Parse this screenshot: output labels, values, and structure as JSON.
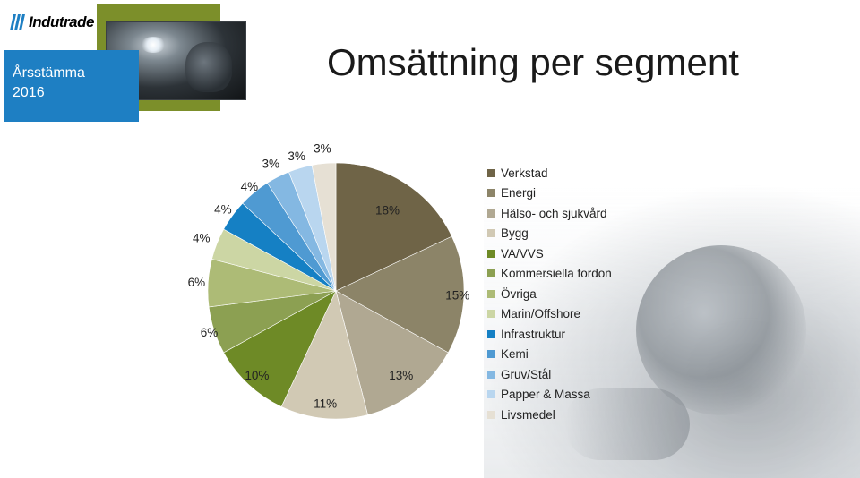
{
  "header": {
    "brand": "Indutrade",
    "meeting_line1": "Årsstämma",
    "meeting_line2": "2016",
    "title": "Omsättning per segment"
  },
  "icons": {
    "logo": "indutrade-logo-icon",
    "thumbnail": "welder-photo"
  },
  "colors": {
    "accent_blue": "#1e7fc3",
    "accent_green": "#7c8f2a"
  },
  "chart_data": {
    "type": "pie",
    "title": "",
    "categories": [
      "Verkstad",
      "Energi",
      "Hälso- och sjukvård",
      "Bygg",
      "VA/VVS",
      "Kommersiella fordon",
      "Övriga",
      "Marin/Offshore",
      "Infrastruktur",
      "Kemi",
      "Gruv/Stål",
      "Papper & Massa",
      "Livsmedel"
    ],
    "values": [
      18,
      15,
      13,
      11,
      10,
      6,
      6,
      4,
      4,
      4,
      3,
      3,
      3
    ],
    "labels": [
      "18%",
      "15%",
      "13%",
      "11%",
      "10%",
      "6%",
      "6%",
      "4%",
      "4%",
      "4%",
      "3%",
      "3%",
      "3%"
    ],
    "colors": [
      "#6f6447",
      "#8c8468",
      "#b0a892",
      "#d1c9b4",
      "#6e8a26",
      "#8ca052",
      "#adbb76",
      "#ccd6a4",
      "#1580c4",
      "#4f9ad2",
      "#84b8e2",
      "#b9d6ef",
      "#e6e0d4"
    ],
    "legend_position": "right"
  }
}
